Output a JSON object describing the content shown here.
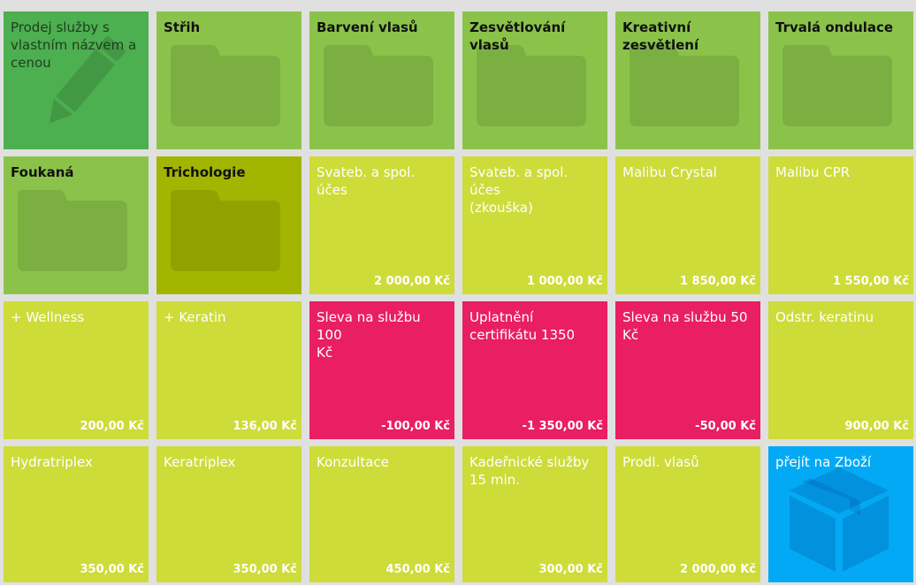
{
  "colors": {
    "custom": "#4caf50",
    "folder": "#8bc34a",
    "folder_dark": "#a2b500",
    "service": "#cddc39",
    "discount": "#e91e63",
    "goods": "#03a9f4"
  },
  "tiles": [
    {
      "label": "Prodej služby s\nvlastním názvem a\ncenou",
      "price": "",
      "kind": "custom",
      "icon": "pencil-icon"
    },
    {
      "label": "Střih",
      "price": "",
      "kind": "folder",
      "icon": "folder-icon"
    },
    {
      "label": "Barvení vlasů",
      "price": "",
      "kind": "folder",
      "icon": "folder-icon"
    },
    {
      "label": "Zesvětlování vlasů",
      "price": "",
      "kind": "folder",
      "icon": "folder-icon"
    },
    {
      "label": "Kreativní\nzesvětlení",
      "price": "",
      "kind": "folder",
      "icon": "folder-icon"
    },
    {
      "label": "Trvalá ondulace",
      "price": "",
      "kind": "folder",
      "icon": "folder-icon"
    },
    {
      "label": "Foukaná",
      "price": "",
      "kind": "folder",
      "icon": "folder-icon"
    },
    {
      "label": "Trichologie",
      "price": "",
      "kind": "folder_dark",
      "icon": "folder-icon"
    },
    {
      "label": "Svateb. a spol. účes",
      "price": "2 000,00 Kč",
      "kind": "service"
    },
    {
      "label": "Svateb. a spol. účes\n(zkouška)",
      "price": "1 000,00 Kč",
      "kind": "service"
    },
    {
      "label": "Malibu Crystal",
      "price": "1 850,00 Kč",
      "kind": "service"
    },
    {
      "label": "Malibu CPR",
      "price": "1 550,00 Kč",
      "kind": "service"
    },
    {
      "label": "+ Wellness",
      "price": "200,00 Kč",
      "kind": "service"
    },
    {
      "label": "+ Keratin",
      "price": "136,00 Kč",
      "kind": "service"
    },
    {
      "label": "Sleva na službu 100\nKč",
      "price": "-100,00 Kč",
      "kind": "discount"
    },
    {
      "label": "Uplatnění\ncertifikátu 1350",
      "price": "-1 350,00 Kč",
      "kind": "discount"
    },
    {
      "label": "Sleva na službu 50\nKč",
      "price": "-50,00 Kč",
      "kind": "discount"
    },
    {
      "label": "Odstr. keratinu",
      "price": "900,00 Kč",
      "kind": "service"
    },
    {
      "label": "Hydratriplex",
      "price": "350,00 Kč",
      "kind": "service"
    },
    {
      "label": "Keratriplex",
      "price": "350,00 Kč",
      "kind": "service"
    },
    {
      "label": "Konzultace",
      "price": "450,00 Kč",
      "kind": "service"
    },
    {
      "label": "Kadeřnické služby\n15 min.",
      "price": "300,00 Kč",
      "kind": "service"
    },
    {
      "label": "Prodl. vlasů",
      "price": "2 000,00 Kč",
      "kind": "service"
    },
    {
      "label": "přejít na Zboží",
      "price": "",
      "kind": "goods",
      "icon": "box-icon"
    }
  ]
}
